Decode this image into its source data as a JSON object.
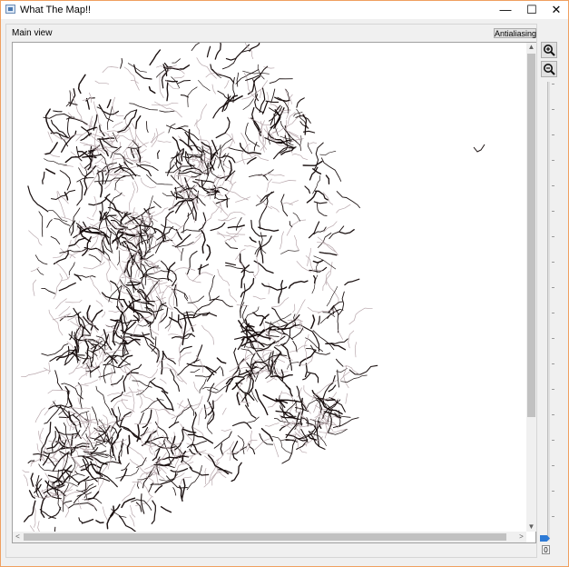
{
  "window": {
    "title": "What The Map!!",
    "controls": {
      "minimize": "—",
      "maximize": "☐",
      "close": "✕"
    }
  },
  "main_view": {
    "title": "Main view",
    "antialiasing_label": "Antialiasing"
  },
  "scrollbars": {
    "up_arrow": "▲",
    "down_arrow": "▼",
    "left_arrow": "<",
    "right_arrow": ">"
  },
  "zoom": {
    "zoom_in_icon": "zoom-in-icon",
    "zoom_out_icon": "zoom-out-icon",
    "slider_value": 0,
    "readout": "0"
  },
  "colors": {
    "accent": "#2d7ad6",
    "road": "#1a1010",
    "road_light": "#b9a8ad"
  }
}
